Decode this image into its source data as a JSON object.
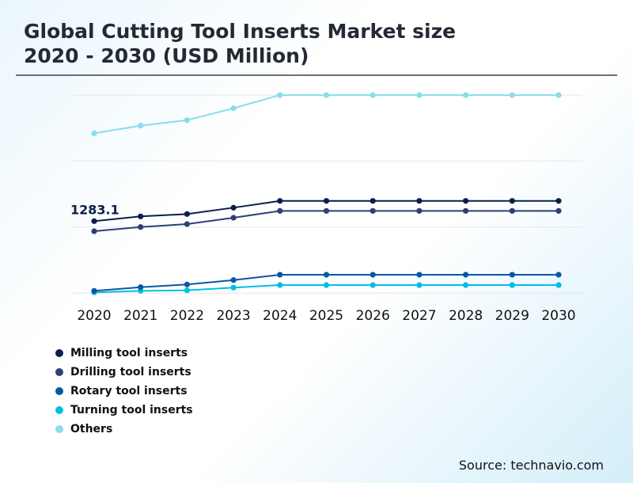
{
  "title_line1": "Global Cutting Tool Inserts Market size",
  "title_line2": "2020 - 2030 (USD Million)",
  "source": "Source: technavio.com",
  "chart_data": {
    "type": "line",
    "title": "Global Cutting Tool Inserts Market size 2020 - 2030 (USD Million)",
    "x": [
      "2020",
      "2021",
      "2022",
      "2023",
      "2024",
      "2025",
      "2026",
      "2027",
      "2028",
      "2029",
      "2030"
    ],
    "ylim": [
      0,
      3530
    ],
    "grid": true,
    "legend_position": "bottom-left",
    "annotation": {
      "text": "1283.1",
      "series": "Milling tool inserts",
      "x": "2020"
    },
    "series": [
      {
        "name": "Milling tool inserts",
        "color": "#0b1f4b",
        "values": [
          1283.1,
          1368,
          1410,
          1523,
          1644,
          1644,
          1644,
          1644,
          1644,
          1644,
          1644
        ]
      },
      {
        "name": "Drilling tool inserts",
        "color": "#2e3f75",
        "values": [
          1104,
          1179,
          1231,
          1344,
          1466,
          1466,
          1466,
          1466,
          1466,
          1466,
          1466
        ]
      },
      {
        "name": "Rotary tool inserts",
        "color": "#0a56a5",
        "values": [
          42,
          107,
          155,
          234,
          329,
          329,
          329,
          329,
          329,
          329,
          329
        ]
      },
      {
        "name": "Turning tool inserts",
        "color": "#00c0e0",
        "values": [
          14,
          42,
          51,
          99,
          145,
          145,
          145,
          145,
          145,
          145,
          145
        ]
      },
      {
        "name": "Others",
        "color": "#88dcf0",
        "values": [
          2848,
          2984,
          3082,
          3294,
          3529,
          3529,
          3529,
          3529,
          3529,
          3529,
          3529
        ]
      }
    ]
  }
}
